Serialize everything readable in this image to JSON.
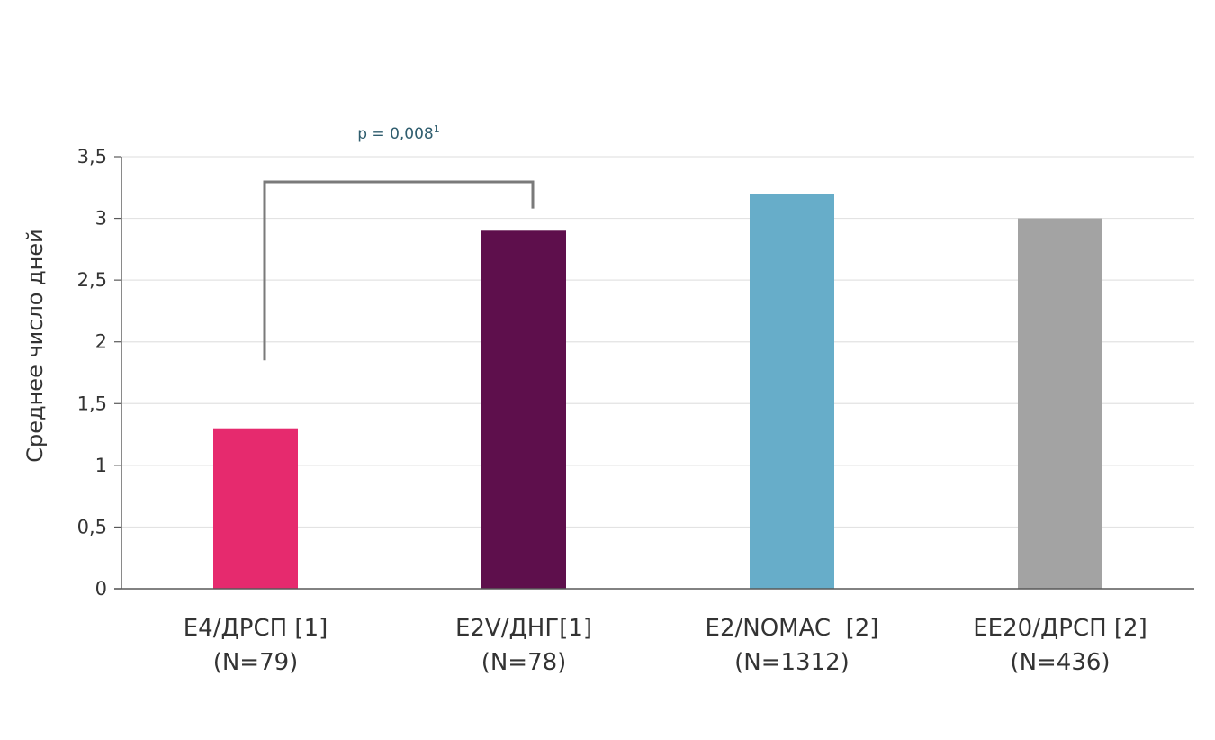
{
  "chart_data": {
    "type": "bar",
    "categories": [
      [
        "E4/ДРСП [1]",
        "(N=79)"
      ],
      [
        "E2V/ДНГ[1]",
        "(N=78)"
      ],
      [
        "E2/NOMAC  [2]",
        "(N=1312)"
      ],
      [
        "EE20/ДРСП [2]",
        "(N=436)"
      ]
    ],
    "values": [
      1.3,
      2.9,
      3.2,
      3.0
    ],
    "colors": [
      "#e62a6e",
      "#5e0f4c",
      "#67adc9",
      "#a3a3a3"
    ],
    "ylabel": "Среднее число дней",
    "ylim": [
      0,
      3.5
    ],
    "yticks": [
      {
        "value": 0,
        "label": "0"
      },
      {
        "value": 0.5,
        "label": "0,5"
      },
      {
        "value": 1,
        "label": "1"
      },
      {
        "value": 1.5,
        "label": "1,5"
      },
      {
        "value": 2,
        "label": "2"
      },
      {
        "value": 2.5,
        "label": "2,5"
      },
      {
        "value": 3,
        "label": "3"
      },
      {
        "value": 3.5,
        "label": "3,5"
      }
    ],
    "grid": true,
    "annotations": [
      {
        "text": "p = 0,008",
        "superscript": "1",
        "between": [
          0,
          1
        ],
        "color": "#2f5d6e"
      }
    ]
  }
}
